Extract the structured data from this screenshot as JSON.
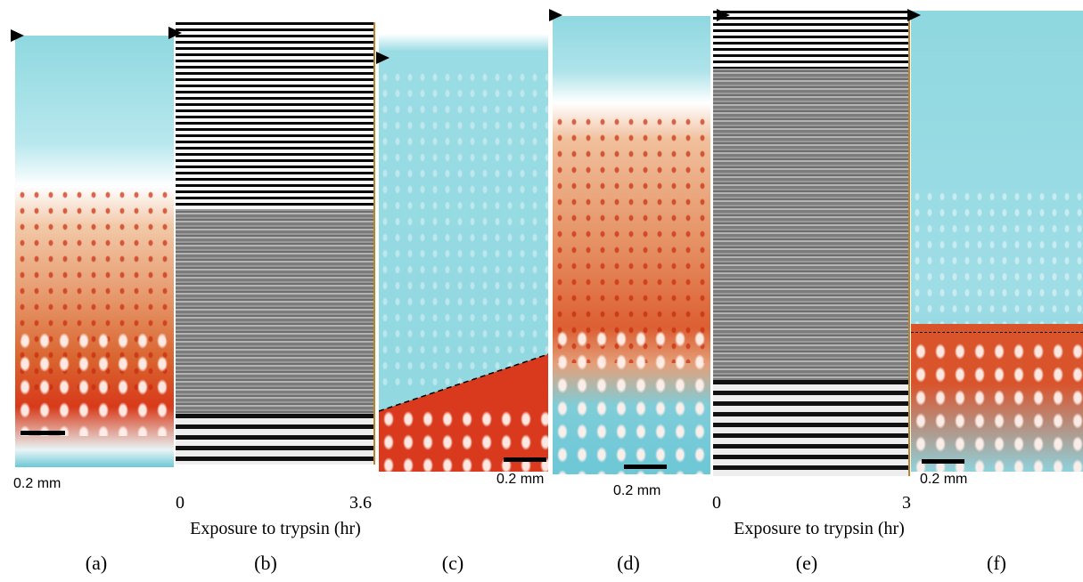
{
  "panels": [
    {
      "label": "(a)",
      "scale_bar": "0.2 mm"
    },
    {
      "label": "(b)",
      "axis_start": "0",
      "axis_end": "3.6",
      "axis_title": "Exposure to trypsin (hr)"
    },
    {
      "label": "(c)",
      "scale_bar": "0.2 mm"
    },
    {
      "label": "(d)",
      "scale_bar": "0.2 mm"
    },
    {
      "label": "(e)",
      "axis_start": "0",
      "axis_end": "3",
      "axis_title": "Exposure to trypsin (hr)"
    },
    {
      "label": "(f)",
      "scale_bar": "0.2 mm"
    }
  ]
}
